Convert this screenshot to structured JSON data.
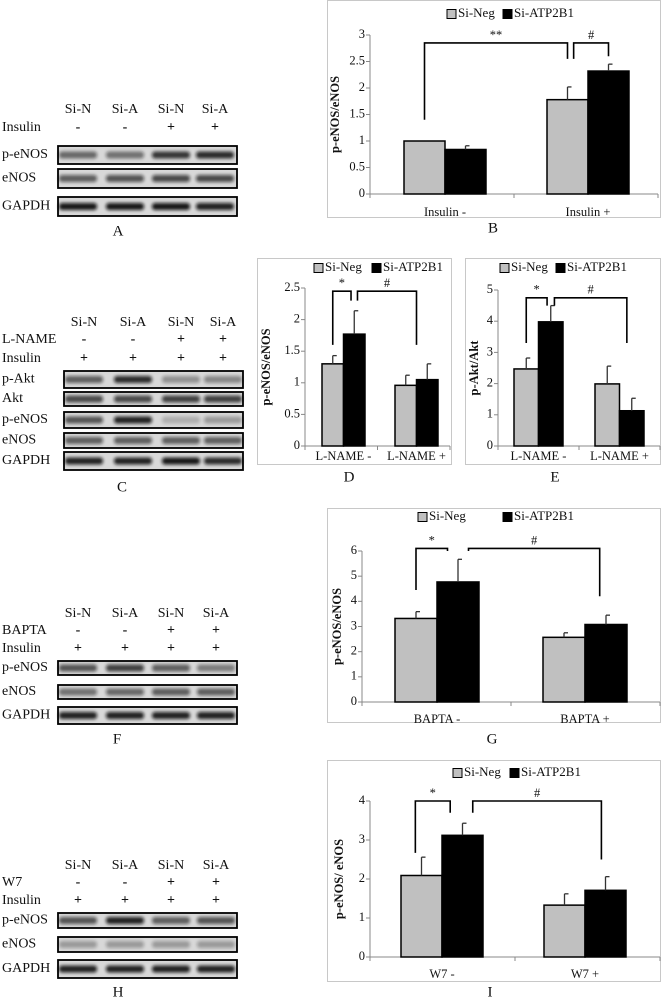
{
  "colors": {
    "si_neg": "#c0c0c0",
    "si_atp2b1": "#000000",
    "chart_border": "#c8c8c8"
  },
  "blots": [
    {
      "panel": "A",
      "lanes": [
        "Si-N",
        "Si-A",
        "Si-N",
        "Si-A"
      ],
      "treatments": [
        {
          "label": "Insulin",
          "values": [
            "-",
            "-",
            "+",
            "+"
          ]
        }
      ],
      "bands": [
        "p-eNOS",
        "eNOS",
        "GAPDH"
      ]
    },
    {
      "panel": "C",
      "lanes": [
        "Si-N",
        "Si-A",
        "Si-N",
        "Si-A"
      ],
      "treatments": [
        {
          "label": "L-NAME",
          "values": [
            "-",
            "-",
            "+",
            "+"
          ]
        },
        {
          "label": "Insulin",
          "values": [
            "+",
            "+",
            "+",
            "+"
          ]
        }
      ],
      "bands": [
        "p-Akt",
        "Akt",
        "p-eNOS",
        "eNOS",
        "GAPDH"
      ]
    },
    {
      "panel": "F",
      "lanes": [
        "Si-N",
        "Si-A",
        "Si-N",
        "Si-A"
      ],
      "treatments": [
        {
          "label": "BAPTA",
          "values": [
            "-",
            "-",
            "+",
            "+"
          ]
        },
        {
          "label": "Insulin",
          "values": [
            "+",
            "+",
            "+",
            "+"
          ]
        }
      ],
      "bands": [
        "p-eNOS",
        "eNOS",
        "GAPDH"
      ]
    },
    {
      "panel": "H",
      "lanes": [
        "Si-N",
        "Si-A",
        "Si-N",
        "Si-A"
      ],
      "treatments": [
        {
          "label": "W7",
          "values": [
            "-",
            "-",
            "+",
            "+"
          ]
        },
        {
          "label": "Insulin",
          "values": [
            "+",
            "+",
            "+",
            "+"
          ]
        }
      ],
      "bands": [
        "p-eNOS",
        "eNOS",
        "GAPDH"
      ]
    }
  ],
  "chart_data": [
    {
      "panel": "B",
      "type": "bar",
      "ylabel": "p-eNOS/eNOS",
      "legend": "top",
      "categories": [
        "Insulin -",
        "Insulin +"
      ],
      "ylim": [
        0,
        3
      ],
      "yticks": [
        "0",
        "0.5",
        "1",
        "1.5",
        "2",
        "2.5",
        "3"
      ],
      "series": [
        {
          "name": "Si-Neg",
          "values": [
            1.0,
            1.78
          ],
          "errors": [
            0,
            0.24
          ]
        },
        {
          "name": "Si-ATP2B1",
          "values": [
            0.84,
            2.32
          ],
          "errors": [
            0.07,
            0.13
          ]
        }
      ],
      "annotations": [
        {
          "label": "**",
          "from": [
            0,
            0
          ],
          "to": [
            1,
            0
          ],
          "top": 2.85,
          "from_end": 1.4,
          "to_end": 2.55
        },
        {
          "label": "#",
          "from": [
            1,
            0.15
          ],
          "to": [
            1,
            1
          ],
          "top": 2.85,
          "from_end": 2.55,
          "to_end": 2.6
        }
      ]
    },
    {
      "panel": "D",
      "type": "bar",
      "ylabel": "p-eNOS/eNOS",
      "legend": "top",
      "categories": [
        "L-NAME -",
        "L-NAME +"
      ],
      "ylim": [
        0,
        2.5
      ],
      "yticks": [
        "0",
        "0.5",
        "1",
        "1.5",
        "2",
        "2.5"
      ],
      "series": [
        {
          "name": "Si-Neg",
          "values": [
            1.3,
            0.96
          ],
          "errors": [
            0.13,
            0.16
          ]
        },
        {
          "name": "Si-ATP2B1",
          "values": [
            1.77,
            1.05
          ],
          "errors": [
            0.37,
            0.25
          ]
        }
      ],
      "annotations": [
        {
          "label": "*",
          "from": [
            0,
            0
          ],
          "to": [
            0,
            0.85
          ],
          "top": 2.45,
          "from_end": 1.6,
          "to_end": 2.3
        },
        {
          "label": "#",
          "from": [
            0,
            1.15
          ],
          "to": [
            1,
            0.5
          ],
          "top": 2.45,
          "from_end": 2.3,
          "to_end": 1.6
        }
      ]
    },
    {
      "panel": "E",
      "type": "bar",
      "ylabel": "p-Akt/Akt",
      "legend": "top",
      "categories": [
        "L-NAME -",
        "L-NAME +"
      ],
      "ylim": [
        0,
        5
      ],
      "yticks": [
        "0",
        "1",
        "2",
        "3",
        "4",
        "5"
      ],
      "series": [
        {
          "name": "Si-Neg",
          "values": [
            2.47,
            1.99
          ],
          "errors": [
            0.35,
            0.57
          ]
        },
        {
          "name": "Si-ATP2B1",
          "values": [
            3.98,
            1.13
          ],
          "errors": [
            0.52,
            0.4
          ]
        }
      ],
      "annotations": [
        {
          "label": "*",
          "from": [
            0,
            0
          ],
          "to": [
            0,
            0.85
          ],
          "top": 4.75,
          "from_end": 3.3,
          "to_end": 4.5
        },
        {
          "label": "#",
          "from": [
            0,
            1.15
          ],
          "to": [
            1,
            0.8
          ],
          "top": 4.75,
          "from_end": 4.5,
          "to_end": 3.3
        }
      ]
    },
    {
      "panel": "G",
      "type": "bar",
      "ylabel": "p-eNOS/eNOS",
      "legend": "top",
      "categories": [
        "BAPTA -",
        "BAPTA +"
      ],
      "ylim": [
        0,
        6
      ],
      "yticks": [
        "0",
        "1",
        "2",
        "3",
        "4",
        "5",
        "6"
      ],
      "series": [
        {
          "name": "Si-Neg",
          "values": [
            3.32,
            2.57
          ],
          "errors": [
            0.27,
            0.18
          ]
        },
        {
          "name": "Si-ATP2B1",
          "values": [
            4.77,
            3.08
          ],
          "errors": [
            0.9,
            0.37
          ]
        }
      ],
      "annotations": [
        {
          "label": "*",
          "from": [
            0,
            0
          ],
          "to": [
            0,
            0.75
          ],
          "top": 6.1,
          "from_end": 4.45,
          "to_end": 6.0
        },
        {
          "label": "#",
          "from": [
            0,
            1.25
          ],
          "to": [
            1,
            0.85
          ],
          "top": 6.1,
          "from_end": 6.0,
          "to_end": 4.2
        }
      ]
    },
    {
      "panel": "I",
      "type": "bar",
      "ylabel": "p-eNOS/ eNOS",
      "legend": "top",
      "categories": [
        "W7 -",
        "W7 +"
      ],
      "ylim": [
        0,
        4
      ],
      "yticks": [
        "0",
        "1",
        "2",
        "3",
        "4"
      ],
      "series": [
        {
          "name": "Si-Neg",
          "values": [
            2.09,
            1.33
          ],
          "errors": [
            0.47,
            0.29
          ]
        },
        {
          "name": "Si-ATP2B1",
          "values": [
            3.12,
            1.71
          ],
          "errors": [
            0.31,
            0.35
          ]
        }
      ],
      "annotations": [
        {
          "label": "*",
          "from": [
            0,
            -0.15
          ],
          "to": [
            0,
            0.7
          ],
          "top": 4.0,
          "from_end": 2.67,
          "to_end": 3.7
        },
        {
          "label": "#",
          "from": [
            0,
            1.25
          ],
          "to": [
            1,
            0.9
          ],
          "top": 4.0,
          "from_end": 3.7,
          "to_end": 2.5
        }
      ]
    }
  ]
}
